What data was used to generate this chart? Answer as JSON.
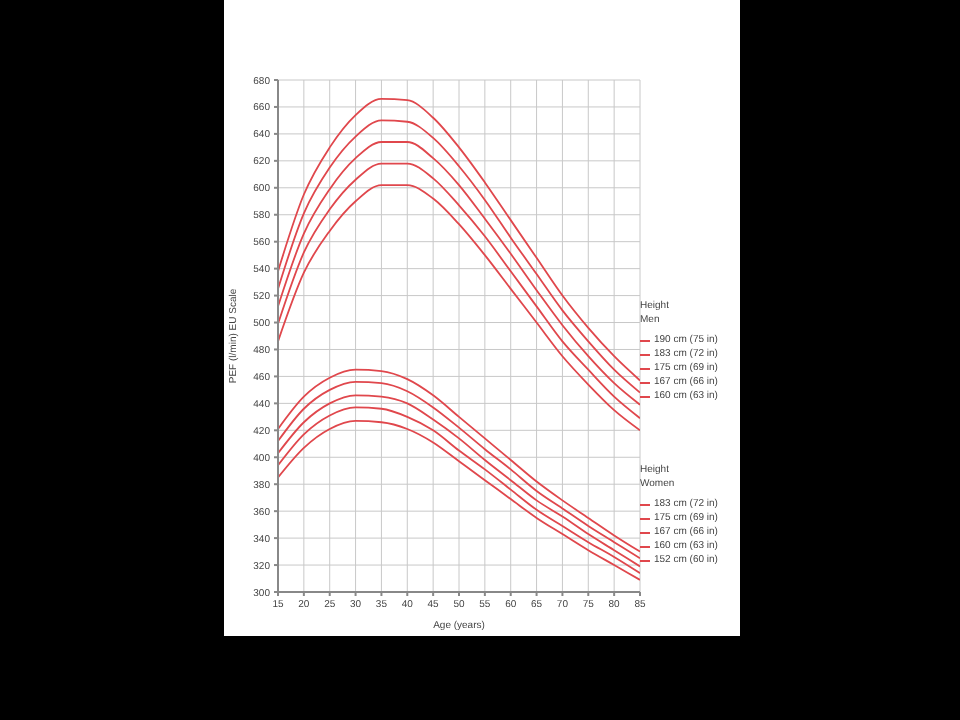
{
  "chart_data": {
    "type": "line",
    "xlabel": "Age (years)",
    "ylabel": "PEF (l/min) EU Scale",
    "x": [
      15,
      20,
      25,
      30,
      35,
      40,
      45,
      50,
      55,
      60,
      65,
      70,
      75,
      80,
      85
    ],
    "series": [
      {
        "name": "190 cm (75 in)",
        "color": "#e0474c",
        "values": [
          538,
          595,
          630,
          654,
          666,
          665,
          652,
          630,
          604,
          576,
          548,
          520,
          496,
          475,
          457
        ]
      },
      {
        "name": "183 cm (72 in)",
        "color": "#e0474c",
        "values": [
          525,
          581,
          615,
          638,
          650,
          649,
          637,
          616,
          591,
          563,
          536,
          509,
          486,
          465,
          448
        ]
      },
      {
        "name": "175 cm (69 in)",
        "color": "#e0474c",
        "values": [
          512,
          566,
          599,
          622,
          634,
          634,
          622,
          602,
          577,
          551,
          524,
          498,
          475,
          455,
          439
        ]
      },
      {
        "name": "167 cm (66 in)",
        "color": "#e0474c",
        "values": [
          499,
          552,
          584,
          606,
          618,
          618,
          607,
          587,
          564,
          538,
          512,
          486,
          465,
          445,
          429
        ]
      },
      {
        "name": "160 cm (63 in)",
        "color": "#e0474c",
        "values": [
          486,
          537,
          568,
          590,
          602,
          602,
          592,
          573,
          550,
          525,
          500,
          475,
          454,
          435,
          420
        ]
      },
      {
        "name": "183 cm (72 in)",
        "color": "#e0474c",
        "values": [
          421,
          445,
          459,
          465,
          464,
          458,
          446,
          430,
          414,
          398,
          382,
          368,
          355,
          342,
          330
        ]
      },
      {
        "name": "175 cm (69 in)",
        "color": "#e0474c",
        "values": [
          412,
          436,
          450,
          456,
          455,
          449,
          437,
          422,
          406,
          391,
          375,
          362,
          349,
          337,
          325
        ]
      },
      {
        "name": "167 cm (66 in)",
        "color": "#e0474c",
        "values": [
          403,
          426,
          440,
          446,
          445,
          440,
          428,
          414,
          398,
          383,
          368,
          356,
          343,
          331,
          319
        ]
      },
      {
        "name": "160 cm (63 in)",
        "color": "#e0474c",
        "values": [
          394,
          417,
          431,
          437,
          436,
          430,
          420,
          405,
          391,
          376,
          361,
          349,
          337,
          326,
          314
        ]
      },
      {
        "name": "152 cm (60 in)",
        "color": "#e0474c",
        "values": [
          385,
          407,
          421,
          427,
          426,
          421,
          411,
          397,
          383,
          369,
          355,
          343,
          331,
          320,
          309
        ]
      }
    ],
    "annotations": [
      "Height Men",
      "Height Women"
    ],
    "xlim": [
      15,
      85
    ],
    "xticks": [
      15,
      20,
      25,
      30,
      35,
      40,
      45,
      50,
      55,
      60,
      65,
      70,
      75,
      80,
      85
    ],
    "ylim": [
      300,
      680
    ],
    "yticks": [
      300,
      320,
      340,
      360,
      380,
      400,
      420,
      440,
      460,
      480,
      500,
      520,
      540,
      560,
      580,
      600,
      620,
      640,
      660,
      680
    ],
    "grid": true,
    "legend": "right",
    "marker": "none",
    "line_style": "solid"
  }
}
